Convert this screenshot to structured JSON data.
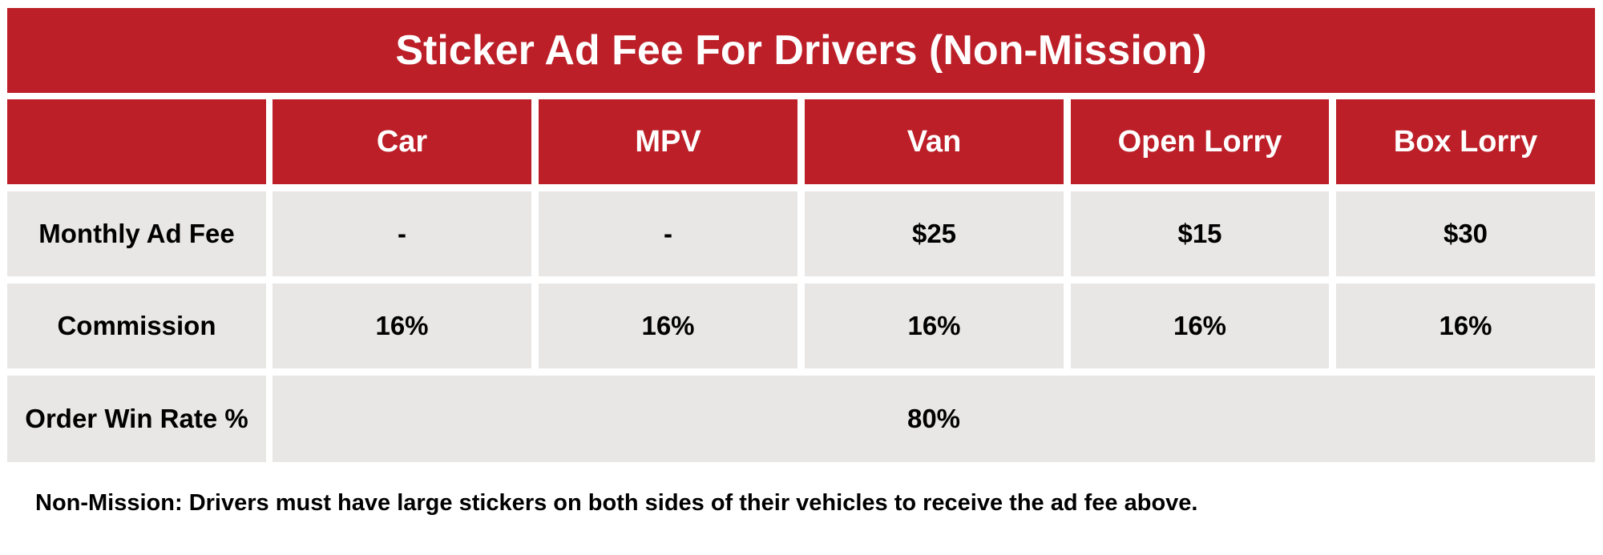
{
  "title": "Sticker Ad Fee For Drivers (Non-Mission)",
  "table": {
    "header": [
      "Car",
      "MPV",
      "Van",
      "Open Lorry",
      "Box Lorry"
    ],
    "rows": [
      {
        "label": "Monthly Ad Fee",
        "cells": [
          "-",
          "-",
          "$25",
          "$15",
          "$30"
        ]
      },
      {
        "label": "Commission",
        "cells": [
          "16%",
          "16%",
          "16%",
          "16%",
          "16%"
        ]
      },
      {
        "label": "Order Win Rate %",
        "cells": [
          "80%"
        ]
      }
    ]
  },
  "note": "Non-Mission: Drivers must have large stickers on both sides of their vehicles to receive the ad fee above."
}
